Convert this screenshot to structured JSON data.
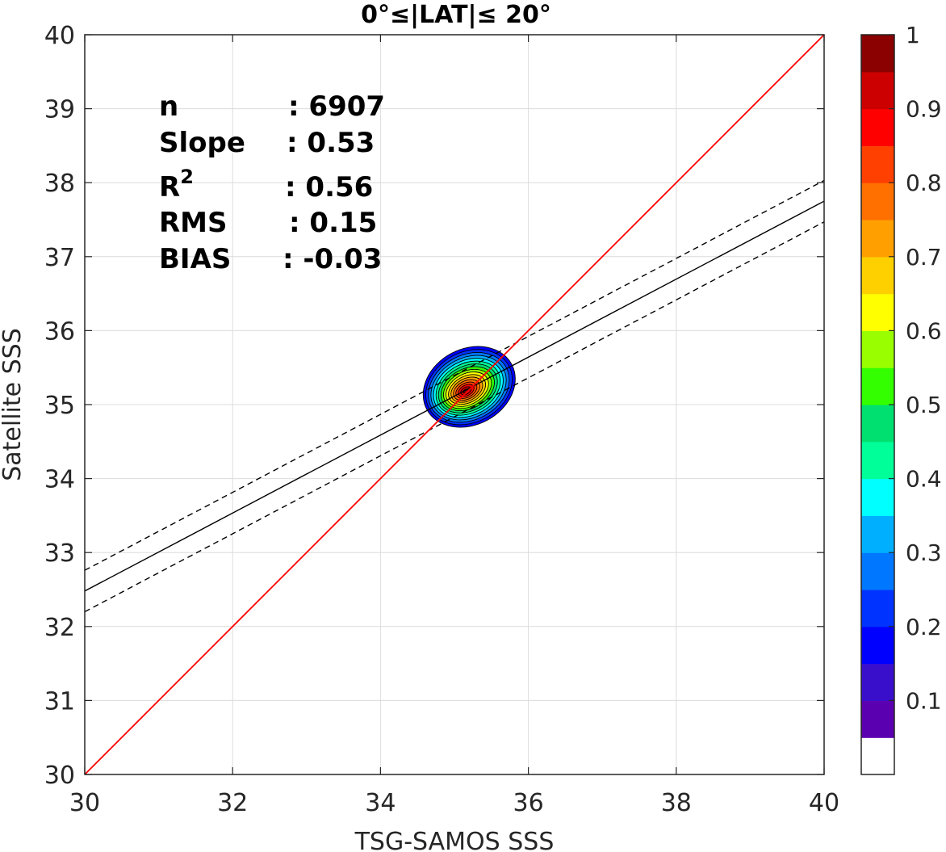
{
  "chart_data": {
    "type": "contour",
    "title": "0°≤|LAT|≤ 20°",
    "xlabel": "TSG-SAMOS SSS",
    "ylabel": "Satellite SSS",
    "xlim": [
      30,
      40
    ],
    "ylim": [
      30,
      40
    ],
    "xticks": [
      "30",
      "32",
      "34",
      "36",
      "38",
      "40"
    ],
    "yticks": [
      "30",
      "31",
      "32",
      "33",
      "34",
      "35",
      "36",
      "37",
      "38",
      "39",
      "40"
    ],
    "grid": true,
    "stats": {
      "n_label": "n",
      "n_value": ": 6907",
      "slope_label": "Slope",
      "slope_value": ": 0.53",
      "r2_label": "R",
      "r2_sup": "2",
      "r2_value": ": 0.56",
      "rms_label": "RMS",
      "rms_value": ": 0.15",
      "bias_label": "BIAS",
      "bias_value": ": -0.03"
    },
    "density_center": [
      35.15,
      35.18
    ],
    "density_extent": {
      "x": [
        34.55,
        35.85
      ],
      "y": [
        34.7,
        35.78
      ]
    },
    "reference_line": {
      "name": "1:1",
      "color": "#ff0000",
      "from": [
        30,
        30
      ],
      "to": [
        40,
        40
      ]
    },
    "fit_line": {
      "color": "#000000",
      "from": [
        30,
        32.48
      ],
      "to": [
        40,
        37.75
      ]
    },
    "fit_bounds": [
      {
        "from": [
          30,
          32.76
        ],
        "to": [
          40,
          38.03
        ]
      },
      {
        "from": [
          30,
          32.2
        ],
        "to": [
          40,
          37.47
        ]
      }
    ],
    "colorbar": {
      "ticks": [
        "0.1",
        "0.2",
        "0.3",
        "0.4",
        "0.5",
        "0.6",
        "0.7",
        "0.8",
        "0.9",
        "1"
      ],
      "range": [
        0,
        1
      ],
      "colors": [
        "#ffffff",
        "#5b00b0",
        "#3a0fcc",
        "#0000ff",
        "#0033ff",
        "#0077ff",
        "#00b0ff",
        "#00ffff",
        "#00ff99",
        "#00e070",
        "#33ff00",
        "#99ff00",
        "#ffff00",
        "#ffd000",
        "#ffa000",
        "#ff7000",
        "#ff4000",
        "#ff0000",
        "#cc0000",
        "#8b0000"
      ]
    }
  }
}
